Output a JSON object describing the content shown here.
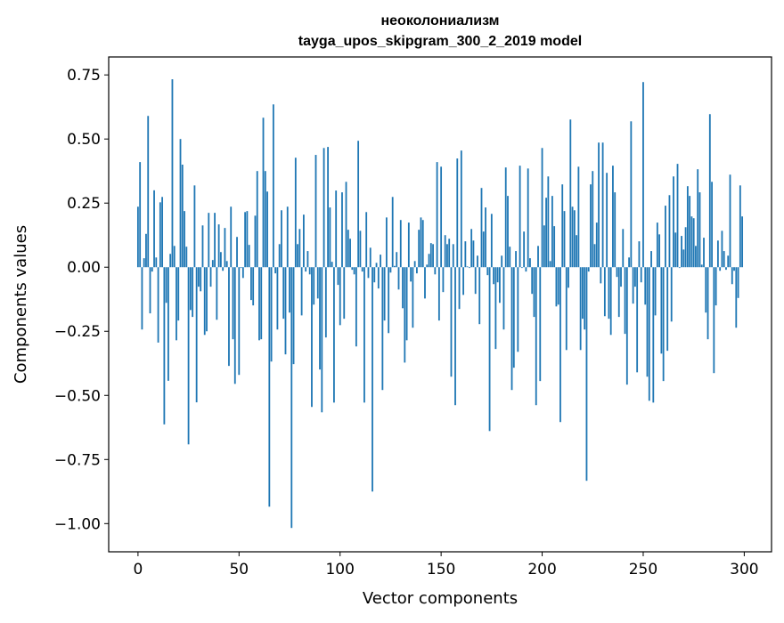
{
  "chart_data": {
    "type": "bar",
    "title": "неоколониализм",
    "subtitle": "tayga_upos_skipgram_300_2_2019 model",
    "xlabel": "Vector components",
    "ylabel": "Components values",
    "xlim": [
      -14.5,
      313.5
    ],
    "ylim": [
      -1.11,
      0.82
    ],
    "xticks": [
      0,
      50,
      100,
      150,
      200,
      250,
      300
    ],
    "xtick_labels": [
      "0",
      "50",
      "100",
      "150",
      "200",
      "250",
      "300"
    ],
    "yticks": [
      0.75,
      0.5,
      0.25,
      0.0,
      -0.25,
      -0.5,
      -0.75,
      -1.0
    ],
    "ytick_labels": [
      "0.75",
      "0.50",
      "0.25",
      "0.00",
      "−0.25",
      "−0.50",
      "−0.75",
      "−1.00"
    ],
    "grid": false,
    "bar_color": "#1f77b4",
    "values": [
      0.236,
      0.41,
      -0.243,
      0.035,
      0.13,
      0.59,
      -0.18,
      -0.017,
      0.3,
      0.038,
      -0.294,
      0.253,
      0.274,
      -0.613,
      -0.139,
      -0.443,
      0.052,
      0.733,
      0.083,
      -0.285,
      -0.208,
      0.5,
      0.4,
      0.219,
      0.08,
      -0.691,
      -0.167,
      -0.194,
      0.319,
      -0.527,
      -0.076,
      -0.094,
      0.163,
      -0.264,
      -0.25,
      0.212,
      -0.076,
      0.028,
      0.212,
      -0.205,
      0.167,
      0.059,
      -0.014,
      0.153,
      0.024,
      -0.385,
      0.236,
      -0.281,
      -0.455,
      0.118,
      -0.42,
      -0.003,
      -0.042,
      0.215,
      0.219,
      0.087,
      -0.128,
      -0.149,
      0.201,
      0.375,
      -0.285,
      -0.281,
      0.583,
      0.375,
      0.295,
      -0.934,
      -0.368,
      0.635,
      -0.024,
      -0.243,
      0.09,
      0.222,
      -0.201,
      -0.34,
      0.236,
      -0.177,
      -1.017,
      -0.378,
      0.427,
      0.09,
      0.149,
      -0.188,
      0.205,
      -0.017,
      0.063,
      -0.028,
      -0.545,
      -0.146,
      0.438,
      -0.122,
      -0.399,
      -0.566,
      0.465,
      -0.274,
      0.469,
      0.233,
      0.021,
      -0.528,
      0.299,
      -0.069,
      -0.226,
      0.292,
      -0.201,
      0.333,
      0.146,
      0.111,
      -0.01,
      -0.028,
      -0.309,
      0.493,
      0.142,
      -0.017,
      -0.528,
      0.215,
      -0.042,
      0.076,
      -0.875,
      -0.059,
      0.017,
      -0.083,
      0.049,
      -0.479,
      -0.208,
      0.194,
      -0.257,
      -0.021,
      0.274,
      0.005,
      0.059,
      -0.087,
      0.184,
      -0.16,
      -0.372,
      -0.285,
      0.174,
      -0.056,
      -0.236,
      0.024,
      -0.024,
      0.146,
      0.194,
      0.184,
      -0.122,
      0.01,
      0.052,
      0.094,
      0.09,
      -0.028,
      0.41,
      -0.208,
      0.392,
      -0.097,
      0.125,
      0.09,
      0.111,
      -0.427,
      0.09,
      -0.538,
      0.424,
      -0.163,
      0.455,
      -0.108,
      0.101,
      0.003,
      -0.003,
      0.149,
      0.104,
      -0.104,
      0.045,
      -0.222,
      0.309,
      0.139,
      0.233,
      -0.031,
      -0.639,
      0.208,
      -0.066,
      -0.319,
      -0.059,
      -0.139,
      0.045,
      -0.243,
      0.389,
      0.278,
      0.08,
      -0.479,
      -0.392,
      0.063,
      -0.33,
      0.396,
      -0.003,
      0.139,
      -0.017,
      0.385,
      0.035,
      -0.104,
      -0.194,
      -0.538,
      0.083,
      -0.444,
      0.465,
      0.163,
      0.271,
      0.354,
      0.024,
      0.278,
      0.16,
      -0.153,
      -0.146,
      -0.604,
      0.323,
      0.219,
      -0.323,
      -0.08,
      0.576,
      0.236,
      0.222,
      0.125,
      0.392,
      -0.323,
      -0.201,
      -0.243,
      -0.833,
      -0.017,
      0.323,
      0.375,
      0.09,
      0.174,
      0.486,
      -0.063,
      0.486,
      -0.191,
      0.368,
      -0.201,
      -0.264,
      0.396,
      0.292,
      -0.038,
      -0.194,
      -0.076,
      0.149,
      -0.26,
      -0.458,
      0.038,
      0.569,
      -0.142,
      -0.076,
      -0.41,
      0.101,
      -0.059,
      0.722,
      -0.146,
      -0.427,
      -0.521,
      0.063,
      -0.528,
      -0.188,
      0.174,
      0.128,
      -0.337,
      -0.444,
      0.24,
      -0.326,
      0.281,
      -0.212,
      0.354,
      0.135,
      0.403,
      -0.003,
      0.122,
      0.069,
      0.156,
      0.316,
      0.278,
      0.198,
      0.191,
      0.083,
      0.382,
      0.292,
      0.01,
      0.115,
      -0.177,
      -0.281,
      0.597,
      0.333,
      -0.413,
      -0.149,
      0.104,
      -0.014,
      0.142,
      0.063,
      -0.01,
      0.045,
      0.361,
      -0.066,
      -0.014,
      -0.236,
      -0.12,
      0.319,
      0.198
    ]
  }
}
